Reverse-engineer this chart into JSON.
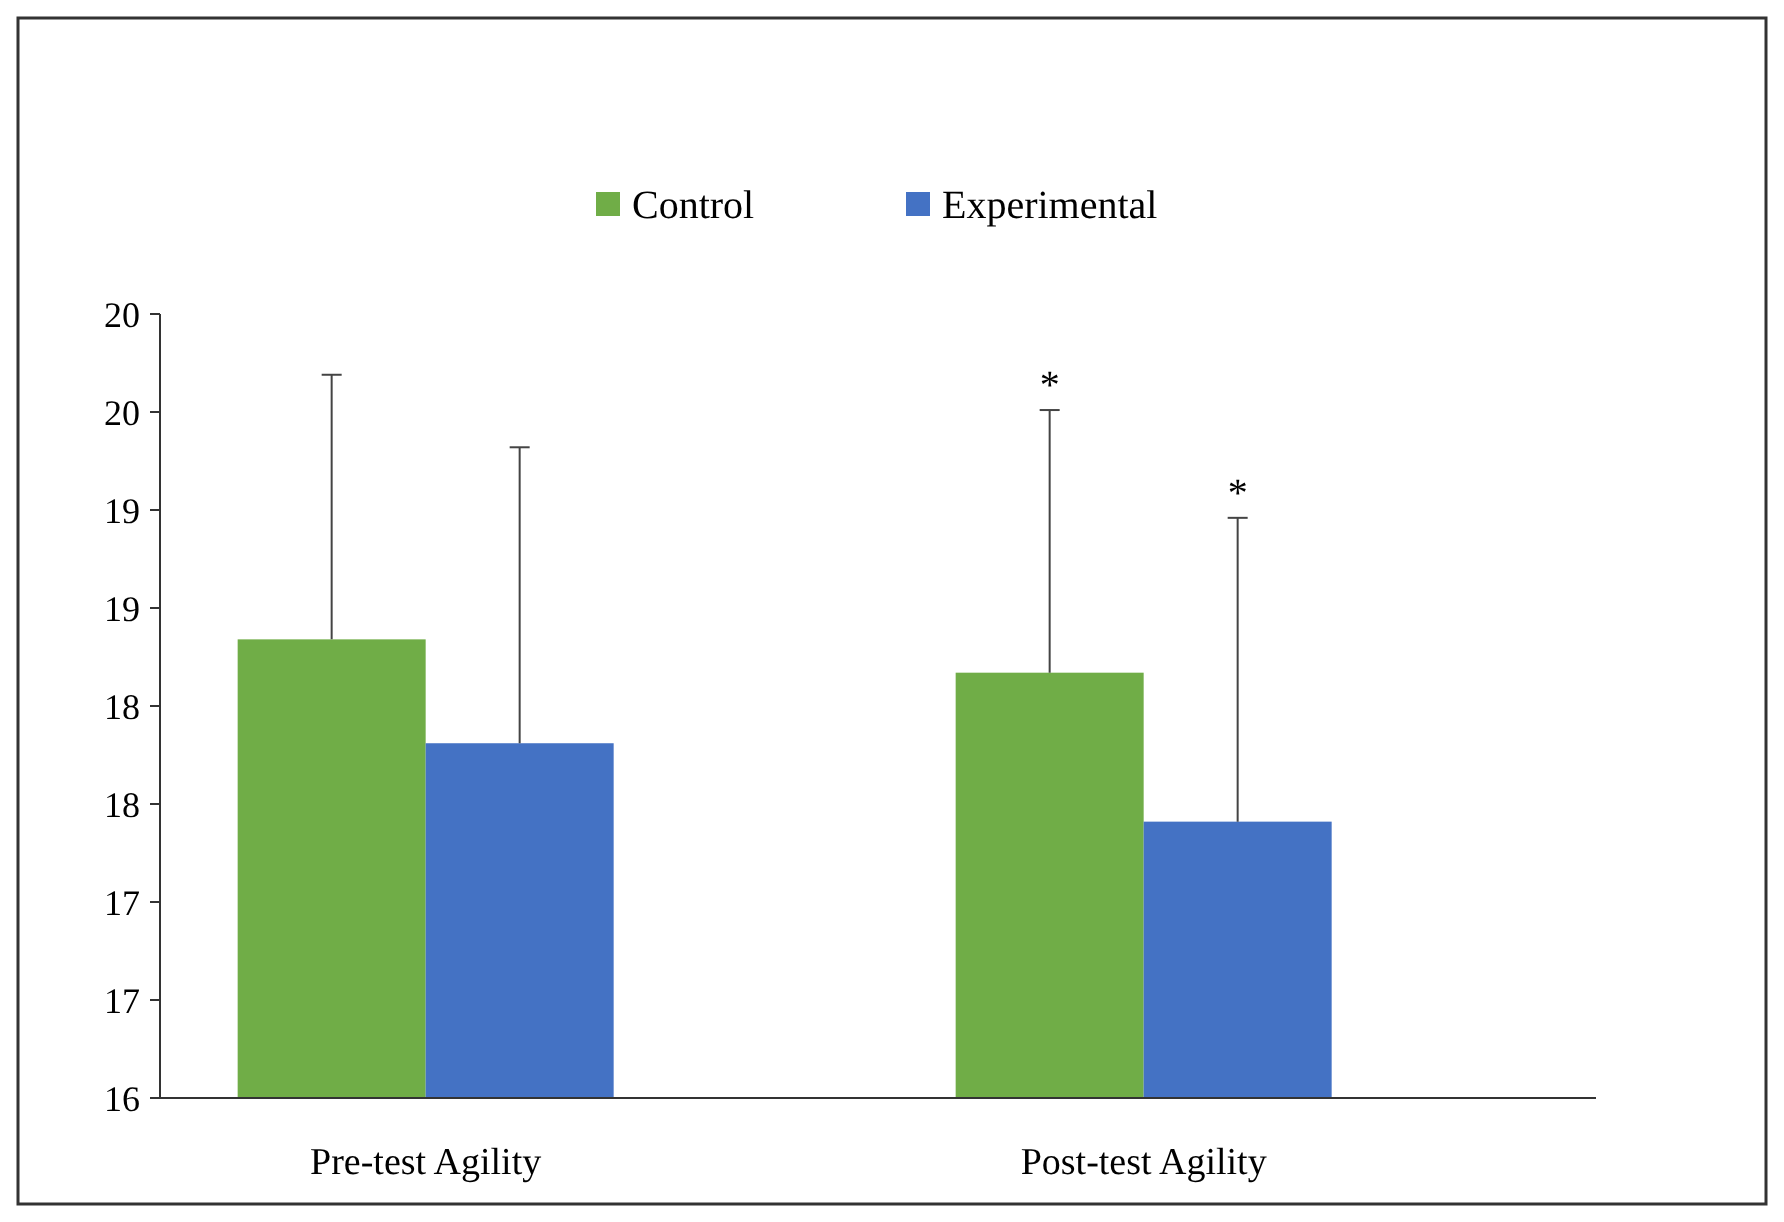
{
  "chart_data": {
    "type": "bar",
    "categories": [
      "Pre-test Agility",
      "Post-test Agility"
    ],
    "series": [
      {
        "name": "Control",
        "color": "#70ad47",
        "values": [
          18.34,
          18.17
        ],
        "errors": [
          [
            18.34,
            19.69
          ],
          [
            18.17,
            19.51
          ]
        ]
      },
      {
        "name": "Experimental",
        "color": "#4472c4",
        "values": [
          17.81,
          17.41
        ],
        "errors": [
          [
            17.81,
            19.32
          ],
          [
            17.41,
            18.96
          ]
        ]
      }
    ],
    "ylim": [
      16,
      20
    ],
    "yticks": [
      {
        "value": 16,
        "label": "16"
      },
      {
        "value": 16.5,
        "label": "17"
      },
      {
        "value": 17,
        "label": "17"
      },
      {
        "value": 17.5,
        "label": "18"
      },
      {
        "value": 18,
        "label": "18"
      },
      {
        "value": 18.5,
        "label": "19"
      },
      {
        "value": 19,
        "label": "19"
      },
      {
        "value": 19.5,
        "label": "20"
      },
      {
        "value": 20,
        "label": "20"
      }
    ],
    "annotations": [
      "*",
      "*"
    ],
    "legend": "top",
    "grid": false
  }
}
